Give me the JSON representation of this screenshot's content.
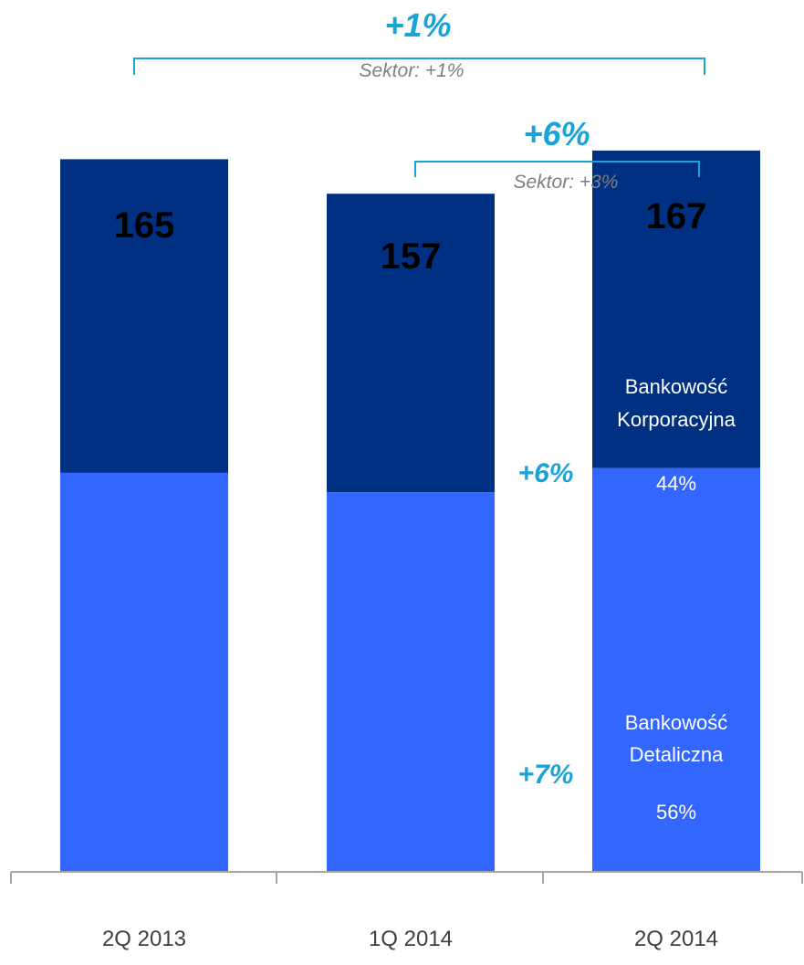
{
  "chart_data": {
    "type": "bar",
    "stacked": true,
    "categories": [
      "2Q 2013",
      "1Q 2014",
      "2Q 2014"
    ],
    "totals": [
      "165",
      "157",
      "167"
    ],
    "series": [
      {
        "name": "Bankowość Detaliczna",
        "values": [
          92.4,
          87.9,
          93.5
        ],
        "color": "#3366FF"
      },
      {
        "name": "Bankowość Korporacyjna",
        "values": [
          72.6,
          69.1,
          73.5
        ],
        "color": "#003082"
      }
    ],
    "segment_labels": {
      "retail_line1": "Bankowość",
      "retail_line2": "Detaliczna",
      "retail_share": "56%",
      "corporate_line1": "Bankowość",
      "corporate_line2": "Korporacyjna",
      "corporate_share": "44%"
    },
    "side_growth": {
      "corporate": "+6%",
      "retail": "+7%"
    },
    "comparisons": [
      {
        "growth": "+1%",
        "sector": "Sektor: +1%"
      },
      {
        "growth": "+6%",
        "sector": "Sektor: +3%"
      }
    ],
    "ylim": [
      0,
      186
    ],
    "grid": false,
    "legend": "none",
    "accent_color": "#1AA3D9",
    "axis_color": "#a6a6a6"
  }
}
